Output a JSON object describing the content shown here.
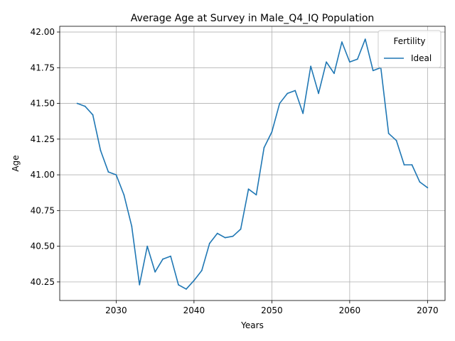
{
  "chart_data": {
    "type": "line",
    "title": "Average Age at Survey in Male_Q4_IQ Population",
    "xlabel": "Years",
    "ylabel": "Age",
    "xlim": [
      2022.75,
      2072.25
    ],
    "ylim": [
      40.12,
      42.04
    ],
    "x_ticks": [
      2030,
      2040,
      2050,
      2060,
      2070
    ],
    "y_ticks": [
      40.25,
      40.5,
      40.75,
      41.0,
      41.25,
      41.5,
      41.75,
      42.0
    ],
    "y_tick_labels": [
      "40.25",
      "40.50",
      "40.75",
      "41.00",
      "41.25",
      "41.50",
      "41.75",
      "42.00"
    ],
    "grid": true,
    "legend": {
      "title": "Fertility",
      "placement": "upper right"
    },
    "series": [
      {
        "name": "Ideal",
        "color": "#1f77b4",
        "x": [
          2025,
          2026,
          2027,
          2028,
          2029,
          2030,
          2031,
          2032,
          2033,
          2034,
          2035,
          2036,
          2037,
          2038,
          2039,
          2040,
          2041,
          2042,
          2043,
          2044,
          2045,
          2046,
          2047,
          2048,
          2049,
          2050,
          2051,
          2052,
          2053,
          2054,
          2055,
          2056,
          2057,
          2058,
          2059,
          2060,
          2061,
          2062,
          2063,
          2064,
          2065,
          2066,
          2067,
          2068,
          2069,
          2070
        ],
        "values": [
          41.5,
          41.48,
          41.42,
          41.17,
          41.02,
          41.0,
          40.86,
          40.64,
          40.23,
          40.5,
          40.32,
          40.41,
          40.43,
          40.23,
          40.2,
          40.26,
          40.33,
          40.52,
          40.59,
          40.56,
          40.57,
          40.62,
          40.9,
          40.86,
          41.19,
          41.3,
          41.5,
          41.57,
          41.59,
          41.43,
          41.76,
          41.57,
          41.79,
          41.71,
          41.93,
          41.79,
          41.81,
          41.95,
          41.73,
          41.75,
          41.29,
          41.24,
          41.07,
          41.07,
          40.95,
          40.91
        ]
      }
    ]
  }
}
